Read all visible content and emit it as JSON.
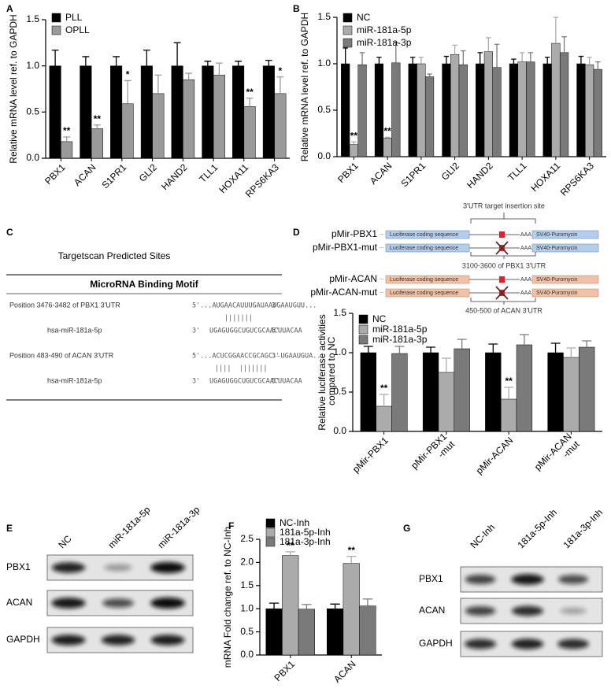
{
  "chart_data": [
    {
      "type": "bar",
      "label": "A",
      "ylabel": "Relative mRNA level ref. to GAPDH",
      "categories": [
        "PBX1",
        "ACAN",
        "S1PR1",
        "GLI2",
        "HAND2",
        "TLL1",
        "HOXA11",
        "RPS6KA3"
      ],
      "series": [
        {
          "name": "PLL",
          "color": "#000000",
          "values": [
            1.0,
            1.0,
            1.0,
            1.0,
            1.0,
            1.0,
            1.0,
            1.0
          ],
          "errors": [
            0.17,
            0.1,
            0.1,
            0.17,
            0.25,
            0.05,
            0.05,
            0.06
          ]
        },
        {
          "name": "OPLL",
          "color": "#9a9a9a",
          "values": [
            0.18,
            0.32,
            0.59,
            0.7,
            0.85,
            0.9,
            0.56,
            0.7
          ],
          "errors": [
            0.05,
            0.04,
            0.25,
            0.2,
            0.07,
            0.13,
            0.09,
            0.18
          ],
          "significance": [
            "**",
            "**",
            "*",
            null,
            null,
            null,
            "**",
            "*"
          ]
        }
      ],
      "ylim": [
        0,
        1.5
      ],
      "yticks": [
        {
          "value": 0,
          "label": "0.0"
        },
        0.5,
        {
          "value": 1,
          "label": "1.0"
        },
        1.5
      ],
      "legend": "upper left"
    },
    {
      "type": "bar",
      "label": "B",
      "ylabel": "Relative mRNA level ref. to GAPDH",
      "categories": [
        "PBX1",
        "ACAN",
        "S1PR1",
        "GLI2",
        "HAND2",
        "TLL1",
        "HOXA11",
        "RPS6KA3"
      ],
      "series": [
        {
          "name": "NC",
          "color": "#000000",
          "values": [
            1.0,
            1.0,
            1.0,
            1.0,
            1.0,
            1.0,
            1.0,
            1.0
          ],
          "errors": [
            0.17,
            0.07,
            0.07,
            0.08,
            0.12,
            0.05,
            0.07,
            0.08
          ]
        },
        {
          "name": "miR-181a-5p",
          "color": "#ababab",
          "values": [
            0.13,
            0.2,
            1.0,
            1.1,
            1.13,
            1.02,
            1.22,
            0.99
          ],
          "errors": [
            0.03,
            0.01,
            0.07,
            0.1,
            0.15,
            0.1,
            0.28,
            0.08
          ],
          "significance": [
            "**",
            "**",
            null,
            null,
            null,
            null,
            null,
            null
          ]
        },
        {
          "name": "miR-181a-3p",
          "color": "#7a7a7a",
          "values": [
            0.99,
            1.01,
            0.86,
            0.99,
            0.96,
            1.02,
            1.12,
            0.94
          ],
          "errors": [
            0.13,
            0.22,
            0.03,
            0.15,
            0.25,
            0.1,
            0.17,
            0.08
          ]
        }
      ],
      "ylim": [
        0,
        1.5
      ],
      "yticks": [
        {
          "value": 0,
          "label": "0.0"
        },
        0.5,
        {
          "value": 1,
          "label": "1.0"
        },
        1.5
      ],
      "legend": "upper left"
    },
    {
      "type": "bar",
      "label": "D",
      "ylabel": "Relative luciferase activities compared to NC",
      "categories": [
        "pMir-PBX1",
        "pMir-PBX1 -mut",
        "pMir-ACAN",
        "pMir-ACAN -mut"
      ],
      "series": [
        {
          "name": "NC",
          "color": "#000000",
          "values": [
            1.0,
            1.0,
            1.0,
            1.0
          ],
          "errors": [
            0.08,
            0.07,
            0.11,
            0.12
          ]
        },
        {
          "name": "miR-181a-5p",
          "color": "#ababab",
          "values": [
            0.32,
            0.75,
            0.41,
            0.94
          ],
          "errors": [
            0.15,
            0.18,
            0.15,
            0.12
          ],
          "significance": [
            "**",
            null,
            "**",
            null
          ]
        },
        {
          "name": "miR-181a-3p",
          "color": "#7a7a7a",
          "values": [
            0.99,
            1.05,
            1.1,
            1.07
          ],
          "errors": [
            0.09,
            0.12,
            0.13,
            0.08
          ]
        }
      ],
      "ylim": [
        0,
        1.5
      ],
      "yticks": [
        {
          "value": 0,
          "label": "0.0"
        },
        0.5,
        {
          "value": 1,
          "label": "1.0"
        },
        1.5
      ],
      "legend": "upper left"
    },
    {
      "type": "bar",
      "label": "F",
      "ylabel": "mRNA Fold change ref. to NC-Inh",
      "categories": [
        "PBX1",
        "ACAN"
      ],
      "series": [
        {
          "name": "NC-Inh",
          "color": "#000000",
          "values": [
            1.0,
            1.0
          ],
          "errors": [
            0.12,
            0.1
          ]
        },
        {
          "name": "181a-5p-Inh",
          "color": "#ababab",
          "values": [
            2.15,
            1.98
          ],
          "errors": [
            0.08,
            0.15
          ],
          "significance": [
            "**",
            "**"
          ]
        },
        {
          "name": "181a-3p-Inh",
          "color": "#7a7a7a",
          "values": [
            0.99,
            1.06
          ],
          "errors": [
            0.1,
            0.15
          ]
        }
      ],
      "ylim": [
        0,
        2.5
      ],
      "yticks": [
        {
          "value": 0,
          "label": "0.0"
        },
        0.5,
        {
          "value": 1,
          "label": "1.0"
        },
        1.5,
        {
          "value": 2,
          "label": "2.0"
        },
        2.5
      ],
      "legend": "upper left"
    }
  ],
  "targetscan": {
    "label": "C",
    "title": "Targetscan Predicted Sites",
    "header": "MicroRNA Binding Motif",
    "sites": [
      {
        "position": "Position 3476-3482 of PBX1 3'UTR",
        "end5": "5'",
        "target": "...AUGAACAUUUGAUAAUGAAUGUU...",
        "end3": "3'",
        "pairs": "|||||||",
        "mirna_name": "hsa-miR-181a-5p",
        "mirna_end3": "3'",
        "mirna": "UGAGUGGCUGUCGCAACUUACAA",
        "mirna_end5": "5'"
      },
      {
        "position": "Position 483-490 of ACAN 3'UTR",
        "end5": "5'",
        "target": "...ACUCGGAACCGCAGC--UGAAUGUA...",
        "end3": "3'",
        "pairs": "||||  |||||||",
        "mirna_name": "hsa-miR-181a-5p",
        "mirna_end3": "3'",
        "mirna": "UGAGUGGCUGUCGCAACUUACAA",
        "mirna_end5": "5'"
      }
    ]
  },
  "construct": {
    "insertion_site": "3'UTR target insertion site",
    "rows": [
      {
        "name": "pMir-PBX1",
        "dots": "...",
        "luc": "Luciferase coding sequence",
        "aaa": "AAA",
        "sv40": "SV40-Puromycin"
      },
      {
        "name": "pMir-PBX1-mut",
        "dots": "...",
        "luc": "Luciferase coding sequence",
        "aaa": "AAA",
        "sv40": "SV40-Puromycin"
      },
      {
        "name": "pMir-ACAN",
        "dots": "...",
        "luc": "Luciferase coding sequence",
        "aaa": "AAA",
        "sv40": "SV40-Puromycin"
      },
      {
        "name": "pMir-ACAN-mut",
        "dots": "...",
        "luc": "Luciferase coding sequence",
        "aaa": "AAA",
        "sv40": "SV40-Puromycin"
      }
    ],
    "regions": [
      "3100-3600 of PBX1 3'UTR",
      "450-500 of ACAN 3'UTR"
    ]
  },
  "blots": [
    {
      "label": "E",
      "lanes": [
        "NC",
        "miR-181a-5p",
        "miR-181a-3p"
      ],
      "rows": [
        "PBX1",
        "ACAN",
        "GAPDH"
      ]
    },
    {
      "label": "G",
      "lanes": [
        "NC-Inh",
        "181a-5p-Inh",
        "181a-3p-Inh"
      ],
      "rows": [
        "PBX1",
        "ACAN",
        "GAPDH"
      ]
    }
  ]
}
